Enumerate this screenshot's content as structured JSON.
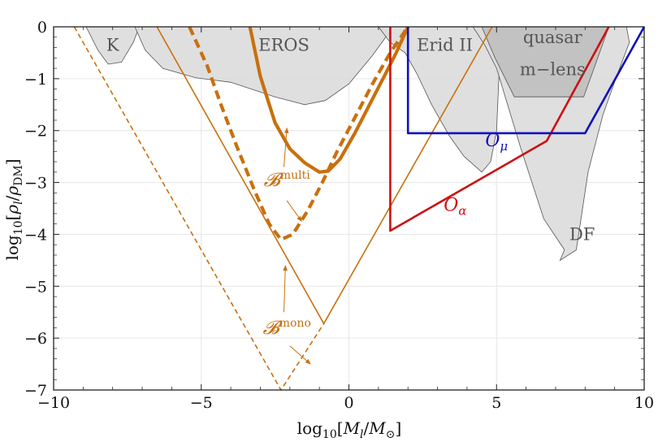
{
  "chart_data": {
    "type": "line",
    "xlabel": "log10[M_l/M_⊙]",
    "ylabel": "log10[ρ_l/ρ_DM]",
    "xlim": [
      -10,
      10
    ],
    "ylim": [
      -7,
      0
    ],
    "x_ticks": [
      -10,
      -5,
      0,
      5,
      10
    ],
    "y_ticks": [
      0,
      -1,
      -2,
      -3,
      -4,
      -5,
      -6,
      -7
    ],
    "x_tick_labels": [
      "−10",
      "−5",
      "0",
      "5",
      "10"
    ],
    "y_tick_labels": [
      "0",
      "−1",
      "−2",
      "−3",
      "−4",
      "−5",
      "−6",
      "−7"
    ],
    "grid": true,
    "colors": {
      "orange": "#c8700e",
      "red": "#cc1111",
      "blue": "#1111bb",
      "region_fill": "#dcdcdc",
      "region_dark": "#bdbdbd",
      "region_stroke": "#555555"
    },
    "regions": [
      {
        "label": "K",
        "points": [
          [
            -8.9,
            0
          ],
          [
            -8.5,
            -0.45
          ],
          [
            -8.15,
            -0.72
          ],
          [
            -7.7,
            -0.68
          ],
          [
            -7.3,
            -0.3
          ],
          [
            -7.1,
            0
          ]
        ]
      },
      {
        "label": "EROS",
        "points": [
          [
            -7.25,
            0
          ],
          [
            -6.9,
            -0.45
          ],
          [
            -6.3,
            -0.8
          ],
          [
            -5.2,
            -0.98
          ],
          [
            -4,
            -1.07
          ],
          [
            -2.5,
            -1.35
          ],
          [
            -1.5,
            -1.5
          ],
          [
            -0.8,
            -1.42
          ],
          [
            0,
            -1.1
          ],
          [
            0.8,
            -0.55
          ],
          [
            1.5,
            0
          ]
        ]
      },
      {
        "label": "Erid II",
        "points": [
          [
            1.0,
            0
          ],
          [
            1.4,
            -0.3
          ],
          [
            1.9,
            -0.5
          ],
          [
            2.3,
            -0.9
          ],
          [
            2.8,
            -1.5
          ],
          [
            3.4,
            -2.1
          ],
          [
            3.9,
            -2.5
          ],
          [
            4.5,
            -2.8
          ],
          [
            4.8,
            -2.6
          ],
          [
            5.0,
            -2.0
          ],
          [
            5.1,
            -0.7
          ],
          [
            5.3,
            -0.1
          ],
          [
            5.5,
            0
          ]
        ]
      },
      {
        "label": "DF",
        "points": [
          [
            4.2,
            0
          ],
          [
            4.6,
            -0.35
          ],
          [
            5.0,
            -0.8
          ],
          [
            5.8,
            -2.3
          ],
          [
            6.6,
            -3.7
          ],
          [
            7.3,
            -4.3
          ],
          [
            7.15,
            -4.5
          ],
          [
            7.7,
            -4.3
          ],
          [
            8.1,
            -2.8
          ],
          [
            8.6,
            -1.7
          ],
          [
            9.1,
            -0.9
          ],
          [
            9.5,
            -0.3
          ],
          [
            9.4,
            0
          ]
        ]
      },
      {
        "label": "quasar m−lens",
        "dark": true,
        "points": [
          [
            4.5,
            0
          ],
          [
            4.95,
            -0.6
          ],
          [
            5.6,
            -1.35
          ],
          [
            7.95,
            -1.35
          ],
          [
            8.3,
            -0.8
          ],
          [
            8.8,
            0
          ]
        ]
      }
    ],
    "region_label_text": {
      "K": "K",
      "EROS": "EROS",
      "Erid II": "Erid II",
      "quasar_1": "quasar",
      "quasar_2": "m−lens",
      "DF": "DF"
    },
    "series": [
      {
        "name": "𝓑multi (solid)",
        "style": "thick-solid",
        "color": "orange",
        "x": [
          -3.35,
          -3.0,
          -2.5,
          -2.0,
          -1.5,
          -1.0,
          -0.7,
          -0.3,
          0.2,
          0.7,
          1.2,
          1.6,
          2.0
        ],
        "y": [
          0,
          -0.95,
          -1.85,
          -2.35,
          -2.62,
          -2.8,
          -2.78,
          -2.55,
          -2.05,
          -1.5,
          -0.95,
          -0.5,
          0
        ]
      },
      {
        "name": "𝓑multi (dashed)",
        "style": "thick-dashed",
        "color": "orange",
        "x": [
          -5.4,
          -4.8,
          -4.3,
          -3.8,
          -3.2,
          -2.7,
          -2.3,
          -1.9,
          -1.4,
          -0.9,
          -0.4,
          0.2,
          0.8,
          1.4,
          2.0
        ],
        "y": [
          0,
          -0.75,
          -1.55,
          -2.3,
          -3.15,
          -3.8,
          -4.1,
          -4.0,
          -3.55,
          -3.0,
          -2.4,
          -1.75,
          -1.1,
          -0.5,
          0
        ]
      },
      {
        "name": "𝓑mono (solid)",
        "style": "thin-solid",
        "color": "orange",
        "x": [
          -6.5,
          -0.85,
          4.85
        ],
        "y": [
          0,
          -5.72,
          0
        ]
      },
      {
        "name": "𝓑mono (dashed)",
        "style": "thin-dashed",
        "color": "orange",
        "x": [
          -9.3,
          -2.3,
          -0.85
        ],
        "y": [
          0,
          -7,
          -5.72
        ]
      },
      {
        "name": "O_α",
        "style": "solid",
        "color": "red",
        "x": [
          1.4,
          1.4,
          6.7,
          8.8
        ],
        "y": [
          0,
          -3.93,
          -2.2,
          0
        ]
      },
      {
        "name": "O_μ",
        "style": "solid",
        "color": "blue",
        "x": [
          2.0,
          2.0,
          8.0,
          10.0
        ],
        "y": [
          0,
          -2.05,
          -2.05,
          0
        ]
      }
    ],
    "annotations": [
      {
        "label": "𝓑",
        "sup": "multi",
        "at": [
          -2.1,
          -3.07
        ],
        "color": "orange"
      },
      {
        "label": "𝓑",
        "sup": "mono",
        "at": [
          -2.1,
          -5.92
        ],
        "color": "orange"
      },
      {
        "label": "O",
        "sub": "α",
        "at": [
          3.6,
          -3.55
        ],
        "color": "red"
      },
      {
        "label": "O",
        "sub": "μ",
        "at": [
          5.0,
          -2.3
        ],
        "color": "blue"
      }
    ],
    "arrows": [
      {
        "from": [
          -2.2,
          -2.7
        ],
        "to": [
          -2.1,
          -1.95
        ]
      },
      {
        "from": [
          -2.1,
          -3.35
        ],
        "to": [
          -1.6,
          -3.75
        ]
      },
      {
        "from": [
          -2.2,
          -5.5
        ],
        "to": [
          -2.15,
          -4.6
        ]
      },
      {
        "from": [
          -2.0,
          -6.15
        ],
        "to": [
          -1.3,
          -6.5
        ]
      }
    ]
  }
}
